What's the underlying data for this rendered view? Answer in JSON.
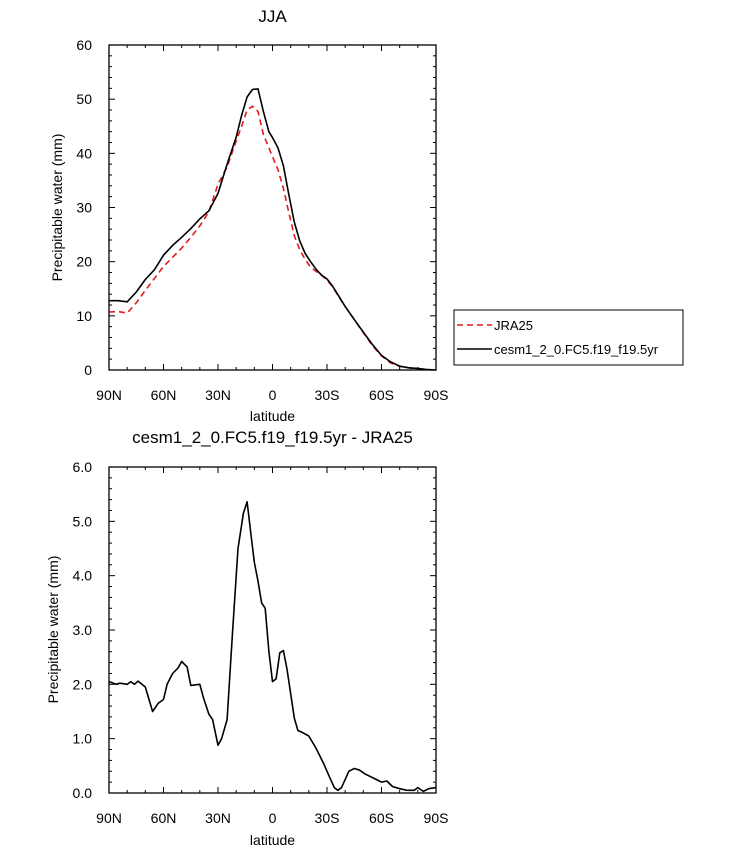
{
  "chart_data": [
    {
      "type": "line",
      "title": "JJA",
      "xlabel": "latitude",
      "ylabel": "Precipitable water (mm)",
      "xlim": [
        90,
        -90
      ],
      "ylim": [
        0,
        60
      ],
      "x_ticks": [
        90,
        60,
        30,
        0,
        -30,
        -60,
        -90
      ],
      "x_tick_labels": [
        "90N",
        "60N",
        "30N",
        "0",
        "30S",
        "60S",
        "90S"
      ],
      "y_ticks": [
        0,
        10,
        20,
        30,
        40,
        50,
        60
      ],
      "y_tick_labels": [
        "0",
        "10",
        "20",
        "30",
        "40",
        "50",
        "60"
      ],
      "legend": {
        "position": "right",
        "entries": [
          "JRA25",
          "cesm1_2_0.FC5.f19_f19.5yr"
        ]
      },
      "series": [
        {
          "name": "JRA25",
          "color": "#e41a1c",
          "dash": "dashed",
          "x": [
            90,
            85,
            80,
            75,
            70,
            65,
            60,
            55,
            50,
            45,
            40,
            35,
            30,
            25,
            20,
            17,
            14,
            11,
            8,
            5,
            2,
            0,
            -3,
            -6,
            -9,
            -12,
            -15,
            -18,
            -21,
            -24,
            -27,
            -30,
            -33,
            -36,
            -40,
            -45,
            -50,
            -55,
            -60,
            -65,
            -70,
            -75,
            -80,
            -85,
            -90
          ],
          "y": [
            10.7,
            10.8,
            10.5,
            12.4,
            14.7,
            16.9,
            19.1,
            20.8,
            22.5,
            24.5,
            26.6,
            29.2,
            34.3,
            37.5,
            42.3,
            45.0,
            48.0,
            48.7,
            47.7,
            43.5,
            41.0,
            39.4,
            37.0,
            33.5,
            29.0,
            24.8,
            22.2,
            20.4,
            19.0,
            18.2,
            17.5,
            16.6,
            15.4,
            13.8,
            11.7,
            9.3,
            6.9,
            4.5,
            2.6,
            1.3,
            0.7,
            0.4,
            0.2,
            0.1,
            0.0
          ]
        },
        {
          "name": "cesm1_2_0.FC5.f19_f19.5yr",
          "color": "#000000",
          "dash": "solid",
          "x": [
            90,
            85,
            80,
            75,
            70,
            65,
            60,
            55,
            50,
            45,
            40,
            35,
            30,
            25,
            20,
            17,
            14,
            11,
            8,
            5,
            2,
            0,
            -3,
            -6,
            -9,
            -12,
            -15,
            -18,
            -21,
            -24,
            -27,
            -30,
            -33,
            -36,
            -40,
            -45,
            -50,
            -55,
            -60,
            -65,
            -70,
            -75,
            -80,
            -85,
            -90
          ],
          "y": [
            12.8,
            12.8,
            12.6,
            14.4,
            16.7,
            18.5,
            21.2,
            23.0,
            24.5,
            26.1,
            27.9,
            29.4,
            32.6,
            38.0,
            43.0,
            47.0,
            50.4,
            51.8,
            51.9,
            47.7,
            44.0,
            42.9,
            41.0,
            37.7,
            32.3,
            27.3,
            23.8,
            21.5,
            20.0,
            18.6,
            17.5,
            16.8,
            15.5,
            13.9,
            11.7,
            9.3,
            7.0,
            4.7,
            2.7,
            1.5,
            0.7,
            0.4,
            0.3,
            0.1,
            0.0
          ]
        }
      ]
    },
    {
      "type": "line",
      "title": "cesm1_2_0.FC5.f19_f19.5yr - JRA25",
      "xlabel": "latitude",
      "ylabel": "Precipitable water (mm)",
      "xlim": [
        90,
        -90
      ],
      "ylim": [
        0,
        6
      ],
      "x_ticks": [
        90,
        60,
        30,
        0,
        -30,
        -60,
        -90
      ],
      "x_tick_labels": [
        "90N",
        "60N",
        "30N",
        "0",
        "30S",
        "60S",
        "90S"
      ],
      "y_ticks": [
        0,
        1,
        2,
        3,
        4,
        5,
        6
      ],
      "y_tick_labels": [
        "0.0",
        "1.0",
        "2.0",
        "3.0",
        "4.0",
        "5.0",
        "6.0"
      ],
      "series": [
        {
          "name": "cesm1_2_0.FC5.f19_f19.5yr - JRA25",
          "color": "#000000",
          "dash": "solid",
          "x": [
            90,
            86,
            84,
            80,
            78,
            76,
            74,
            70,
            66,
            63,
            60,
            58,
            55,
            52,
            50,
            47,
            45,
            40,
            38,
            35,
            33,
            30,
            28,
            25,
            22,
            19,
            16,
            14,
            12,
            10,
            8,
            6,
            4,
            2,
            0,
            -2,
            -4,
            -6,
            -8,
            -12,
            -14,
            -16,
            -20,
            -24,
            -28,
            -32,
            -34,
            -36,
            -38,
            -40,
            -42,
            -45,
            -48,
            -51,
            -54,
            -57,
            -60,
            -63,
            -66,
            -70,
            -74,
            -78,
            -80,
            -83,
            -86,
            -90
          ],
          "y": [
            2.05,
            2.0,
            2.02,
            2.0,
            2.05,
            2.0,
            2.06,
            1.95,
            1.5,
            1.65,
            1.72,
            2.0,
            2.2,
            2.3,
            2.42,
            2.32,
            1.98,
            2.0,
            1.75,
            1.45,
            1.35,
            0.88,
            1.0,
            1.35,
            2.95,
            4.5,
            5.15,
            5.36,
            4.8,
            4.25,
            3.9,
            3.5,
            3.4,
            2.6,
            2.05,
            2.1,
            2.58,
            2.62,
            2.28,
            1.38,
            1.15,
            1.12,
            1.05,
            0.82,
            0.55,
            0.25,
            0.1,
            0.05,
            0.1,
            0.25,
            0.4,
            0.45,
            0.42,
            0.35,
            0.3,
            0.25,
            0.2,
            0.22,
            0.12,
            0.08,
            0.05,
            0.05,
            0.1,
            0.03,
            0.08,
            0.1
          ]
        }
      ]
    }
  ]
}
